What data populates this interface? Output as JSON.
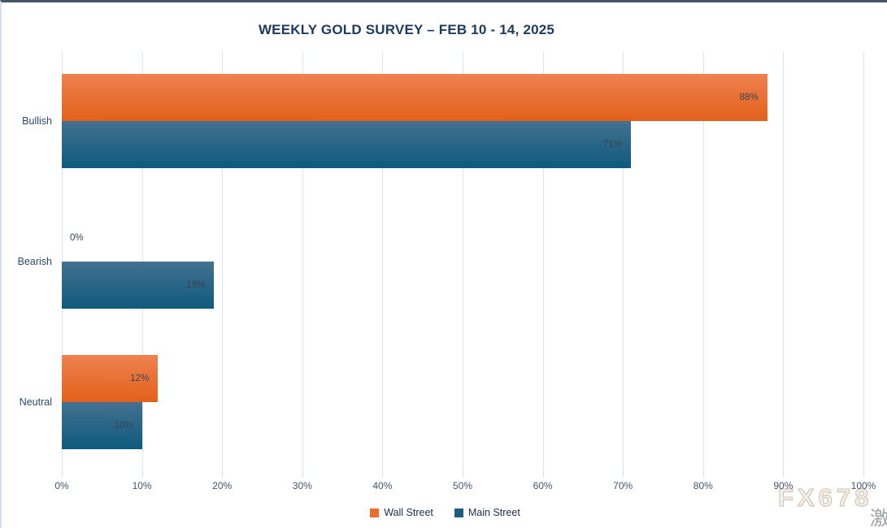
{
  "title": "WEEKLY GOLD SURVEY – FEB 10 - 14, 2025",
  "chart_data": {
    "type": "bar",
    "orientation": "horizontal",
    "title": "WEEKLY GOLD SURVEY – FEB 10 - 14, 2025",
    "categories": [
      "Bullish",
      "Bearish",
      "Neutral"
    ],
    "series": [
      {
        "name": "Wall Street",
        "values": [
          88,
          0,
          12
        ],
        "data_labels": [
          "88%",
          "0%",
          "12%"
        ],
        "color_top": "#ef8150",
        "color_bottom": "#e2611a",
        "legend_color": "#ed6c2d"
      },
      {
        "name": "Main Street",
        "values": [
          71,
          19,
          10
        ],
        "data_labels": [
          "71%",
          "19%",
          "10%"
        ],
        "color_top": "#447190",
        "color_bottom": "#0e5a7d",
        "legend_color": "#1c5d80"
      }
    ],
    "xlim": [
      0,
      100
    ],
    "x_ticks": [
      "0%",
      "10%",
      "20%",
      "30%",
      "40%",
      "50%",
      "60%",
      "70%",
      "80%",
      "90%",
      "100%"
    ],
    "grid": true,
    "legend_position": "bottom"
  },
  "colors": {
    "gridline": "#dbe5f1",
    "title_text": "#1c3a5e",
    "axis_text": "#41556e",
    "category_text": "#2b4a6e",
    "data_label_text": "#3a434e",
    "top_border": "#46536b"
  },
  "watermark": {
    "text": "FX678",
    "cjk_fragment": "激"
  }
}
